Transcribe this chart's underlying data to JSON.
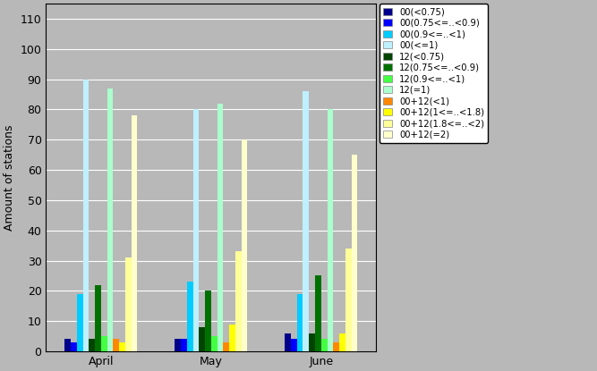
{
  "months": [
    "April",
    "May",
    "June"
  ],
  "series": [
    {
      "label": "00(<0.75)",
      "color": "#00008B",
      "values": [
        4,
        4,
        6
      ]
    },
    {
      "label": "00(0.75<=..<0.9)",
      "color": "#0000FF",
      "values": [
        3,
        4,
        4
      ]
    },
    {
      "label": "00(0.9<=..<1)",
      "color": "#00CCFF",
      "values": [
        19,
        23,
        19
      ]
    },
    {
      "label": "00(<=1)",
      "color": "#BEF0FF",
      "values": [
        90,
        80,
        86
      ]
    },
    {
      "label": "12(<0.75)",
      "color": "#004400",
      "values": [
        4,
        8,
        6
      ]
    },
    {
      "label": "12(0.75<=..<0.9)",
      "color": "#007000",
      "values": [
        22,
        20,
        25
      ]
    },
    {
      "label": "12(0.9<=..<1)",
      "color": "#44FF44",
      "values": [
        5,
        5,
        4
      ]
    },
    {
      "label": "12(=1)",
      "color": "#AAFFCC",
      "values": [
        87,
        82,
        80
      ]
    },
    {
      "label": "00+12(<1)",
      "color": "#FF8800",
      "values": [
        4,
        3,
        3
      ]
    },
    {
      "label": "00+12(1<=..<1.8)",
      "color": "#FFFF00",
      "values": [
        3,
        9,
        6
      ]
    },
    {
      "label": "00+12(1.8<=..<2)",
      "color": "#FFFF99",
      "values": [
        31,
        33,
        34
      ]
    },
    {
      "label": "00+12(=2)",
      "color": "#FFFFCC",
      "values": [
        78,
        70,
        65
      ]
    }
  ],
  "ylabel": "Amount of stations",
  "ylim": [
    0,
    115
  ],
  "yticks": [
    0,
    10,
    20,
    30,
    40,
    50,
    60,
    70,
    80,
    90,
    100,
    110
  ],
  "background_color": "#B8B8B8",
  "plot_background": "#B8B8B8",
  "bar_width": 0.055,
  "figsize": [
    6.67,
    4.15
  ],
  "dpi": 100
}
